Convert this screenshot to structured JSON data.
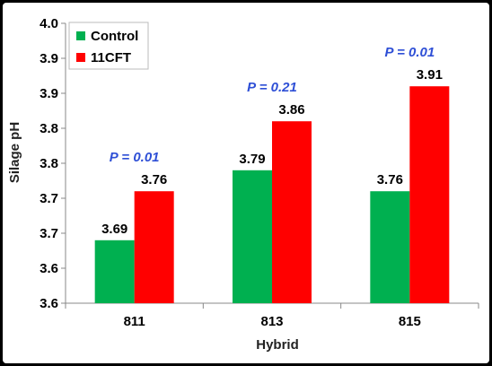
{
  "chart_data": {
    "type": "bar",
    "title": "",
    "xlabel": "Hybrid",
    "ylabel": "Silage pH",
    "categories": [
      "811",
      "813",
      "815"
    ],
    "series": [
      {
        "name": "Control",
        "color": "#00b050",
        "values": [
          3.69,
          3.79,
          3.76
        ],
        "labels": [
          "3.69",
          "3.79",
          "3.76"
        ]
      },
      {
        "name": "11CFT",
        "color": "#ff0000",
        "values": [
          3.76,
          3.86,
          3.91
        ],
        "labels": [
          "3.76",
          "3.86",
          "3.91"
        ]
      }
    ],
    "ylim": [
      3.6,
      4.0
    ],
    "yticks": [
      3.6,
      3.65,
      3.7,
      3.75,
      3.8,
      3.85,
      3.9,
      3.95,
      4.0
    ],
    "ytick_labels": [
      "3.6",
      "3.6",
      "3.7",
      "3.7",
      "3.8",
      "3.8",
      "3.9",
      "3.9",
      "4.0"
    ],
    "annotations": [
      "P = 0.01",
      "P = 0.21",
      "P = 0.01"
    ],
    "annotation_color": "#2e4fd6",
    "legend_position": "top-left",
    "grid": false
  }
}
